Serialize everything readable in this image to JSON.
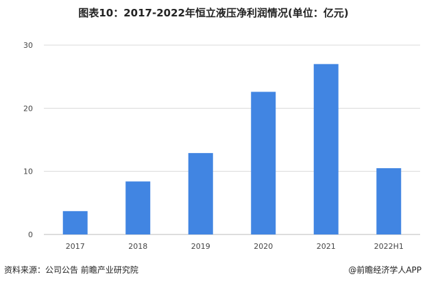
{
  "chart_data": {
    "type": "bar",
    "title": "图表10：2017-2022年恒立液压净利润情况(单位：亿元)",
    "categories": [
      "2017",
      "2018",
      "2019",
      "2020",
      "2021",
      "2022H1"
    ],
    "values": [
      3.7,
      8.4,
      12.9,
      22.6,
      27.0,
      10.5
    ],
    "ylim": [
      0,
      30
    ],
    "yticks": [
      0,
      10,
      20,
      30
    ],
    "grid": true,
    "bar_color": "#4185E2"
  },
  "footer": {
    "source": "资料来源：公司公告 前瞻产业研究院",
    "brand": "@前瞻经济学人APP"
  }
}
